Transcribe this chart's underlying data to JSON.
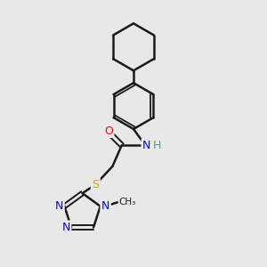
{
  "background_color": "#e8e8e8",
  "bond_color": "#1a1a1a",
  "atom_colors": {
    "N": "#0000ff",
    "O": "#ff0000",
    "S": "#ccaa00",
    "NH_N": "#0000ff",
    "NH_H": "#3cb371",
    "C": "#1a1a1a"
  },
  "figsize": [
    3.0,
    3.0
  ],
  "dpi": 100,
  "xlim": [
    0,
    10
  ],
  "ylim": [
    0,
    10
  ]
}
